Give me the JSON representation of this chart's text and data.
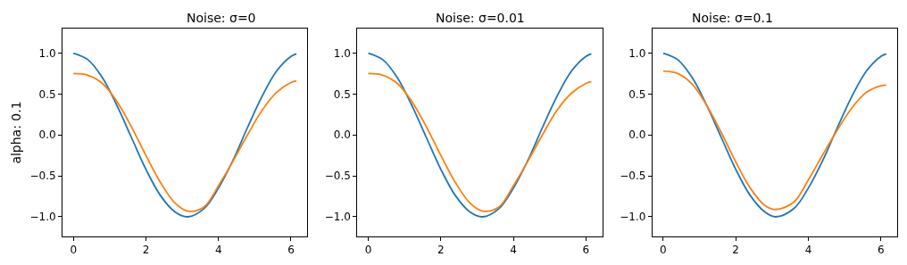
{
  "chart_data": [
    {
      "type": "line",
      "title": "Noise: σ=0",
      "ylabel": "alpha: 0.1",
      "x": [
        0,
        0.4,
        0.8,
        1.2,
        1.6,
        2.0,
        2.4,
        2.8,
        3.15,
        3.6,
        4.0,
        4.4,
        4.8,
        5.2,
        5.6,
        6.0,
        6.15
      ],
      "series": [
        {
          "color": "#1f77b4",
          "values": [
            1.0,
            0.92,
            0.7,
            0.36,
            -0.03,
            -0.42,
            -0.74,
            -0.94,
            -1.0,
            -0.9,
            -0.65,
            -0.31,
            0.09,
            0.47,
            0.78,
            0.96,
            0.99
          ]
        },
        {
          "color": "#ff7f0e",
          "values": [
            0.75,
            0.73,
            0.63,
            0.41,
            0.1,
            -0.25,
            -0.58,
            -0.83,
            -0.93,
            -0.88,
            -0.62,
            -0.32,
            0.0,
            0.3,
            0.52,
            0.64,
            0.66
          ]
        }
      ],
      "xlim": [
        -0.3,
        6.45
      ],
      "ylim": [
        -1.24,
        1.3
      ],
      "xticks": [
        0,
        2,
        4,
        6
      ],
      "yticks": [
        {
          "value": -1,
          "label": "−1.0"
        },
        {
          "value": -0.5,
          "label": "−0.5"
        },
        {
          "value": 0,
          "label": "0.0"
        },
        {
          "value": 0.5,
          "label": "0.5"
        },
        {
          "value": 1,
          "label": "1.0"
        }
      ]
    },
    {
      "type": "line",
      "title": "Noise: σ=0.01",
      "x": [
        0,
        0.4,
        0.8,
        1.2,
        1.6,
        2.0,
        2.4,
        2.8,
        3.15,
        3.6,
        4.0,
        4.4,
        4.8,
        5.2,
        5.6,
        6.0,
        6.15
      ],
      "series": [
        {
          "color": "#1f77b4",
          "values": [
            1.0,
            0.92,
            0.7,
            0.36,
            -0.03,
            -0.42,
            -0.74,
            -0.94,
            -1.0,
            -0.9,
            -0.65,
            -0.31,
            0.09,
            0.47,
            0.78,
            0.96,
            0.99
          ]
        },
        {
          "color": "#ff7f0e",
          "values": [
            0.75,
            0.73,
            0.63,
            0.41,
            0.1,
            -0.25,
            -0.58,
            -0.83,
            -0.93,
            -0.88,
            -0.62,
            -0.32,
            0.0,
            0.3,
            0.51,
            0.63,
            0.65
          ]
        }
      ],
      "xlim": [
        -0.3,
        6.45
      ],
      "ylim": [
        -1.24,
        1.3
      ],
      "xticks": [
        0,
        2,
        4,
        6
      ],
      "yticks": [
        {
          "value": -1,
          "label": "−1.0"
        },
        {
          "value": -0.5,
          "label": "−0.5"
        },
        {
          "value": 0,
          "label": "0.0"
        },
        {
          "value": 0.5,
          "label": "0.5"
        },
        {
          "value": 1,
          "label": "1.0"
        }
      ]
    },
    {
      "type": "line",
      "title": "Noise: σ=0.1",
      "x": [
        0,
        0.4,
        0.8,
        1.2,
        1.6,
        2.0,
        2.4,
        2.8,
        3.1,
        3.6,
        4.0,
        4.4,
        4.8,
        5.2,
        5.6,
        6.0,
        6.15
      ],
      "series": [
        {
          "color": "#1f77b4",
          "values": [
            1.0,
            0.92,
            0.7,
            0.36,
            -0.03,
            -0.42,
            -0.74,
            -0.94,
            -1.0,
            -0.9,
            -0.65,
            -0.31,
            0.09,
            0.47,
            0.78,
            0.96,
            0.99
          ]
        },
        {
          "color": "#ff7f0e",
          "values": [
            0.78,
            0.75,
            0.62,
            0.36,
            0.03,
            -0.33,
            -0.65,
            -0.86,
            -0.91,
            -0.82,
            -0.55,
            -0.24,
            0.06,
            0.33,
            0.52,
            0.6,
            0.61
          ]
        }
      ],
      "xlim": [
        -0.3,
        6.45
      ],
      "ylim": [
        -1.24,
        1.3
      ],
      "xticks": [
        0,
        2,
        4,
        6
      ],
      "yticks": [
        {
          "value": -1,
          "label": "−1.0"
        },
        {
          "value": -0.5,
          "label": "−0.5"
        },
        {
          "value": 0,
          "label": "0.0"
        },
        {
          "value": 0.5,
          "label": "0.5"
        },
        {
          "value": 1,
          "label": "1.0"
        }
      ]
    }
  ]
}
